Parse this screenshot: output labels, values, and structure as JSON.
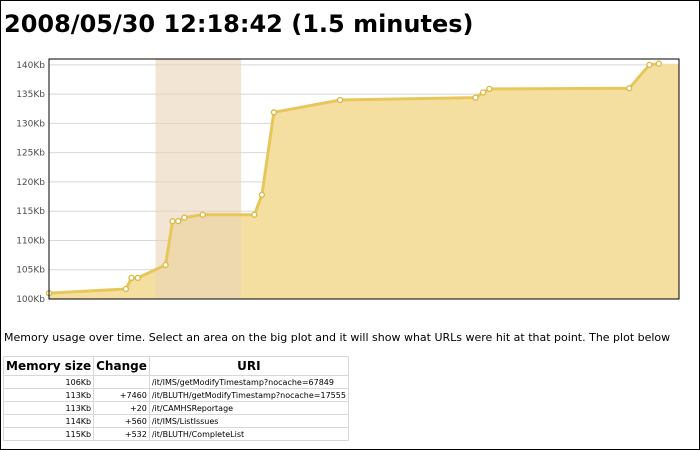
{
  "page": {
    "title": "2008/05/30 12:18:42 (1.5 minutes)",
    "description": "Memory usage over time. Select an area on the big plot and it will show what URLs were hit at that point. The plot below"
  },
  "chart_data": {
    "type": "area",
    "title": "",
    "xlabel": "",
    "ylabel": "",
    "ylim": [
      100,
      141
    ],
    "y_ticks": [
      100,
      105,
      110,
      115,
      120,
      125,
      130,
      135,
      140
    ],
    "y_tick_labels": [
      "100Kb",
      "105Kb",
      "110Kb",
      "115Kb",
      "120Kb",
      "125Kb",
      "130Kb",
      "135Kb",
      "140Kb"
    ],
    "x_range": [
      0,
      100
    ],
    "grid": true,
    "series": [
      {
        "values": [
          [
            0.0,
            101.0
          ],
          [
            12.2,
            101.7
          ],
          [
            13.1,
            103.6
          ],
          [
            14.1,
            103.6
          ],
          [
            18.5,
            105.8
          ],
          [
            19.6,
            113.3
          ],
          [
            20.5,
            113.3
          ],
          [
            21.5,
            113.9
          ],
          [
            24.4,
            114.4
          ],
          [
            32.6,
            114.4
          ],
          [
            33.8,
            117.8
          ],
          [
            35.7,
            131.9
          ],
          [
            46.2,
            134.0
          ],
          [
            67.7,
            134.4
          ],
          [
            68.9,
            135.3
          ],
          [
            69.9,
            135.9
          ],
          [
            92.1,
            136.0
          ],
          [
            95.3,
            140.0
          ],
          [
            96.8,
            140.2
          ]
        ]
      }
    ],
    "selection": [
      16.9,
      30.5
    ],
    "colors": {
      "line": "#e8c75a",
      "point_stroke": "#d9b845",
      "fill": "#f5dfa0",
      "selection": "#ead3b5",
      "grid": "#d8d8d8"
    }
  },
  "table": {
    "headers": [
      "Memory size",
      "Change",
      "URI"
    ],
    "rows": [
      {
        "memory": "106Kb",
        "change": "",
        "uri": "/it/IMS/getModifyTimestamp?nocache=67849"
      },
      {
        "memory": "113Kb",
        "change": "+7460",
        "uri": "/it/BLUTH/getModifyTimestamp?nocache=17555"
      },
      {
        "memory": "113Kb",
        "change": "+20",
        "uri": "/it/CAMHSReportage"
      },
      {
        "memory": "114Kb",
        "change": "+560",
        "uri": "/it/IMS/ListIssues"
      },
      {
        "memory": "115Kb",
        "change": "+532",
        "uri": "/it/BLUTH/CompleteList"
      }
    ]
  }
}
